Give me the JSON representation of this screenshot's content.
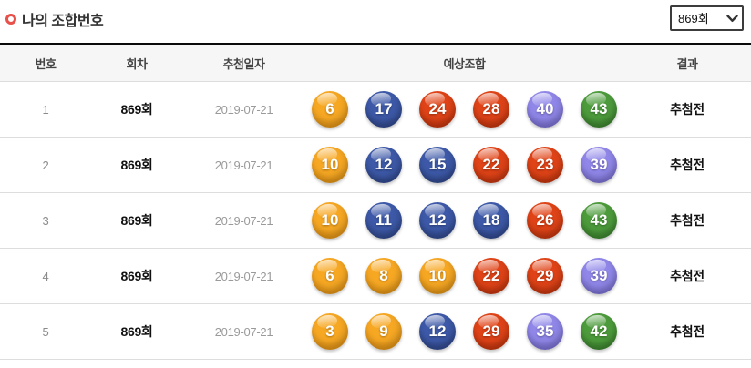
{
  "header": {
    "title": "나의 조합번호",
    "bullet_color": "#e8504a"
  },
  "round_select": {
    "value": "869회"
  },
  "table": {
    "columns": [
      "번호",
      "회차",
      "추첨일자",
      "예상조합",
      "결과"
    ],
    "rows": [
      {
        "no": "1",
        "round": "869회",
        "date": "2019-07-21",
        "numbers": [
          6,
          17,
          24,
          28,
          40,
          43
        ],
        "result": "추첨전"
      },
      {
        "no": "2",
        "round": "869회",
        "date": "2019-07-21",
        "numbers": [
          10,
          12,
          15,
          22,
          23,
          39
        ],
        "result": "추첨전"
      },
      {
        "no": "3",
        "round": "869회",
        "date": "2019-07-21",
        "numbers": [
          10,
          11,
          12,
          18,
          26,
          43
        ],
        "result": "추첨전"
      },
      {
        "no": "4",
        "round": "869회",
        "date": "2019-07-21",
        "numbers": [
          6,
          8,
          10,
          22,
          29,
          39
        ],
        "result": "추첨전"
      },
      {
        "no": "5",
        "round": "869회",
        "date": "2019-07-21",
        "numbers": [
          3,
          9,
          12,
          29,
          35,
          42
        ],
        "result": "추첨전"
      }
    ]
  },
  "ball_colors": [
    {
      "range": "1-10",
      "max": 10,
      "base": "#f7a823",
      "shade": "#e8910a"
    },
    {
      "range": "11-20",
      "max": 20,
      "base": "#3d59a8",
      "shade": "#2a4183"
    },
    {
      "range": "21-30",
      "max": 30,
      "base": "#e04317",
      "shade": "#bf2e06"
    },
    {
      "range": "31-40",
      "max": 40,
      "base": "#9087e9",
      "shade": "#7468d6"
    },
    {
      "range": "41-45",
      "max": 45,
      "base": "#4d9c3c",
      "shade": "#337c26"
    }
  ]
}
